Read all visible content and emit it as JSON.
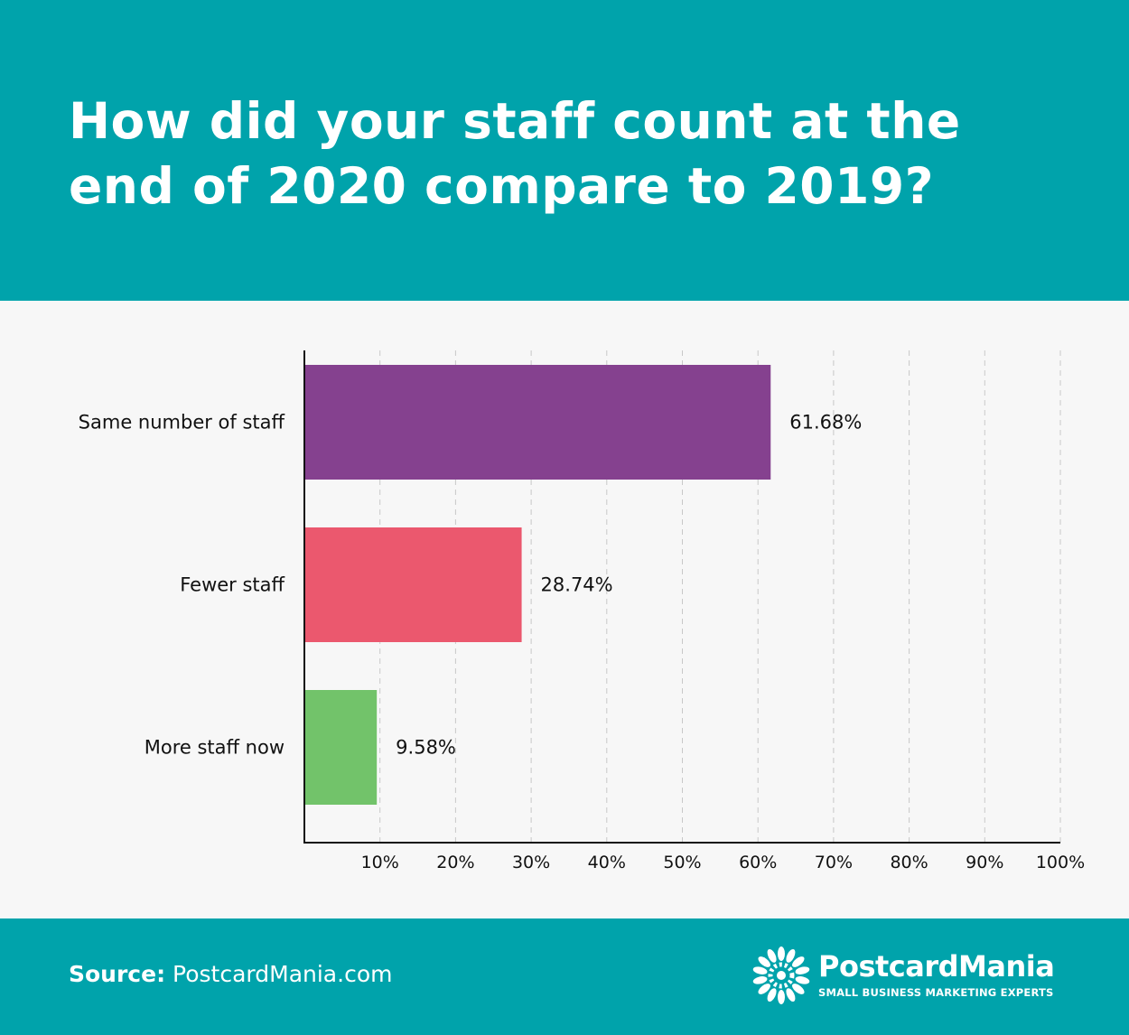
{
  "title": "How did your staff count at the end of 2020 compare to 2019?",
  "footer": {
    "source_label": "Source:",
    "source_value": "PostcardMania.com",
    "logo_name": "PostcardMania",
    "logo_tagline": "SMALL BUSINESS MARKETING EXPERTS"
  },
  "chart_data": {
    "type": "bar",
    "orientation": "horizontal",
    "categories": [
      "Same number of staff",
      "Fewer staff",
      "More staff now"
    ],
    "values": [
      61.68,
      28.74,
      9.58
    ],
    "value_labels": [
      "61.68%",
      "28.74%",
      "9.58%"
    ],
    "colors": [
      "#85418f",
      "#eb586e",
      "#72c36a"
    ],
    "xlim": [
      0,
      100
    ],
    "xticks": [
      10,
      20,
      30,
      40,
      50,
      60,
      70,
      80,
      90,
      100
    ],
    "xtick_labels": [
      "10%",
      "20%",
      "30%",
      "40%",
      "50%",
      "60%",
      "70%",
      "80%",
      "90%",
      "100%"
    ],
    "grid": true,
    "xlabel": "",
    "ylabel": ""
  }
}
